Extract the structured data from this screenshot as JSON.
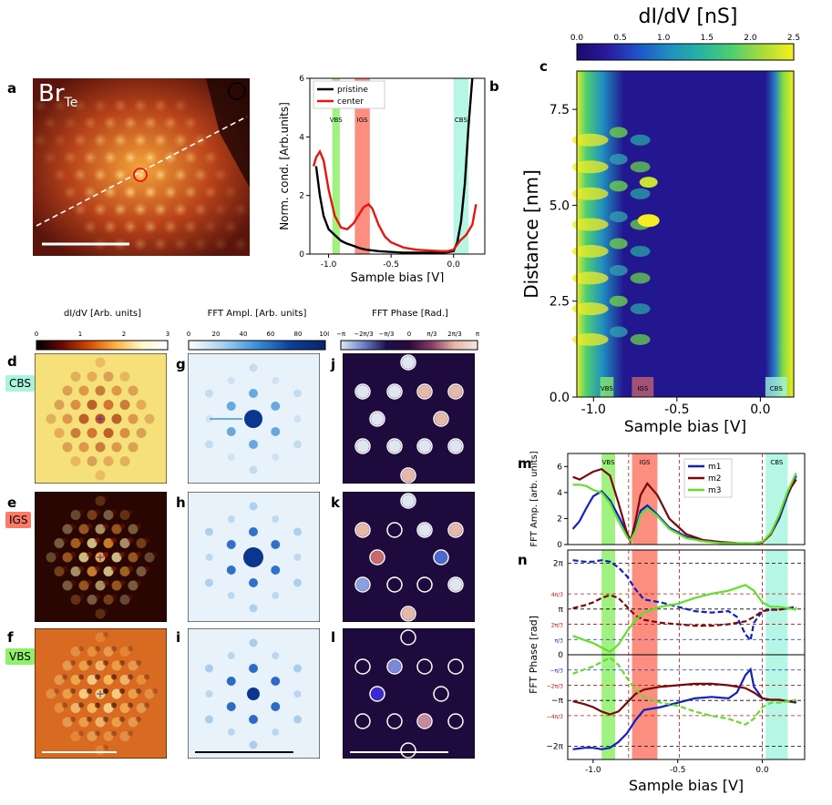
{
  "panel_letters": {
    "a": "a",
    "b": "b",
    "c": "c",
    "d": "d",
    "e": "e",
    "f": "f",
    "g": "g",
    "h": "h",
    "i": "i",
    "j": "j",
    "k": "k",
    "l": "l",
    "m": "m",
    "n": "n"
  },
  "panel_a": {
    "label_main": "Br",
    "label_sub": "Te"
  },
  "row_tags": {
    "cbs": "CBS",
    "igs": "IGS",
    "vbs": "VBS"
  },
  "colorbars": {
    "didv": {
      "title": "dI/dV [Arb. units]",
      "ticks": [
        "0",
        "1",
        "2",
        "3"
      ]
    },
    "fft_amp": {
      "title": "FFT Ampl. [Arb. units]",
      "ticks": [
        "0",
        "20",
        "40",
        "60",
        "80",
        "100"
      ]
    },
    "fft_phase": {
      "title": "FFT Phase [Rad.]",
      "ticks": [
        "−π",
        "−2π/3",
        "−π/3",
        "0",
        "π/3",
        "2π/3",
        "π"
      ]
    },
    "map_c": {
      "title": "dI/dV [nS]",
      "ticks": [
        "0.0",
        "0.5",
        "1.0",
        "1.5",
        "2.0",
        "2.5"
      ]
    }
  },
  "band_labels": {
    "vbs": "VBS",
    "igs": "IGS",
    "cbs": "CBS"
  },
  "chart_data": [
    {
      "id": "b",
      "type": "line",
      "xlabel": "Sample bias [V]",
      "ylabel": "Norm. cond. [Arb.units]",
      "xlim": [
        -1.15,
        0.25
      ],
      "ylim": [
        0,
        6
      ],
      "xticks": [
        "-1.0",
        "-0.5",
        "0.0"
      ],
      "yticks": [
        "0",
        "2",
        "4",
        "6"
      ],
      "legend": [
        "pristine",
        "center"
      ],
      "series": [
        {
          "name": "pristine",
          "color": "#000000",
          "x": [
            -1.1,
            -1.07,
            -1.04,
            -1.0,
            -0.95,
            -0.9,
            -0.85,
            -0.8,
            -0.75,
            -0.7,
            -0.6,
            -0.5,
            -0.4,
            -0.3,
            -0.2,
            -0.1,
            -0.05,
            0.0,
            0.03,
            0.06,
            0.09,
            0.12,
            0.15
          ],
          "y": [
            3.0,
            2.0,
            1.3,
            0.85,
            0.65,
            0.45,
            0.35,
            0.28,
            0.2,
            0.15,
            0.1,
            0.07,
            0.05,
            0.05,
            0.05,
            0.05,
            0.06,
            0.1,
            0.4,
            1.1,
            2.4,
            4.4,
            6.0
          ]
        },
        {
          "name": "center",
          "color": "#e8150e",
          "x": [
            -1.12,
            -1.1,
            -1.07,
            -1.04,
            -1.0,
            -0.95,
            -0.9,
            -0.85,
            -0.8,
            -0.75,
            -0.72,
            -0.68,
            -0.65,
            -0.6,
            -0.55,
            -0.5,
            -0.4,
            -0.3,
            -0.2,
            -0.1,
            -0.05,
            0.0,
            0.05,
            0.1,
            0.15,
            0.18
          ],
          "y": [
            3.0,
            3.3,
            3.5,
            3.2,
            2.2,
            1.3,
            0.9,
            0.85,
            1.05,
            1.4,
            1.6,
            1.7,
            1.55,
            1.0,
            0.6,
            0.4,
            0.22,
            0.15,
            0.12,
            0.1,
            0.1,
            0.15,
            0.45,
            0.65,
            1.0,
            1.7
          ]
        }
      ],
      "bands": [
        {
          "name": "VBS",
          "from": -0.97,
          "to": -0.91,
          "color": "#8ff06a"
        },
        {
          "name": "IGS",
          "from": -0.79,
          "to": -0.67,
          "color": "#fa7a67"
        },
        {
          "name": "CBS",
          "from": 0.0,
          "to": 0.12,
          "color": "#a8f5df"
        }
      ]
    },
    {
      "id": "c",
      "type": "heatmap",
      "xlabel": "Sample bias [V]",
      "ylabel": "Distance [nm]",
      "xlim": [
        -1.1,
        0.2
      ],
      "ylim": [
        0,
        8.5
      ],
      "xticks": [
        "-1.0",
        "-0.5",
        "0.0"
      ],
      "yticks": [
        "0.0",
        "2.5",
        "5.0",
        "7.5"
      ],
      "colorbar_range": [
        0,
        2.5
      ]
    },
    {
      "id": "m",
      "type": "line",
      "ylabel": "FFT Amp. [arb. units]",
      "xlim": [
        -1.15,
        0.25
      ],
      "ylim": [
        0,
        7
      ],
      "yticks": [
        "0",
        "2",
        "4",
        "6"
      ],
      "legend": [
        "m1",
        "m2",
        "m3"
      ],
      "series": [
        {
          "name": "m1",
          "color": "#1020c0",
          "x": [
            -1.12,
            -1.08,
            -1.04,
            -1.0,
            -0.95,
            -0.9,
            -0.85,
            -0.8,
            -0.78,
            -0.75,
            -0.72,
            -0.68,
            -0.62,
            -0.55,
            -0.45,
            -0.35,
            -0.25,
            -0.15,
            -0.05,
            0.0,
            0.05,
            0.1,
            0.15,
            0.2
          ],
          "y": [
            1.2,
            1.8,
            2.8,
            3.7,
            4.1,
            3.4,
            2.2,
            0.9,
            0.4,
            1.2,
            2.6,
            3.0,
            2.3,
            1.3,
            0.6,
            0.3,
            0.15,
            0.1,
            0.1,
            0.2,
            0.8,
            2.0,
            3.8,
            5.3
          ]
        },
        {
          "name": "m2",
          "color": "#7a0a0a",
          "x": [
            -1.12,
            -1.08,
            -1.04,
            -1.0,
            -0.95,
            -0.9,
            -0.85,
            -0.8,
            -0.78,
            -0.75,
            -0.72,
            -0.68,
            -0.62,
            -0.55,
            -0.45,
            -0.35,
            -0.25,
            -0.15,
            -0.05,
            0.0,
            0.05,
            0.1,
            0.15,
            0.2
          ],
          "y": [
            5.2,
            5.0,
            5.3,
            5.6,
            5.8,
            5.3,
            3.2,
            0.9,
            0.2,
            1.8,
            3.8,
            4.7,
            3.8,
            2.0,
            0.8,
            0.35,
            0.2,
            0.12,
            0.1,
            0.15,
            0.8,
            2.2,
            4.0,
            5.0
          ]
        },
        {
          "name": "m3",
          "color": "#5fe02a",
          "x": [
            -1.12,
            -1.08,
            -1.04,
            -1.0,
            -0.95,
            -0.9,
            -0.85,
            -0.8,
            -0.78,
            -0.75,
            -0.72,
            -0.68,
            -0.62,
            -0.55,
            -0.45,
            -0.35,
            -0.25,
            -0.15,
            -0.05,
            0.0,
            0.05,
            0.1,
            0.15,
            0.2
          ],
          "y": [
            4.6,
            4.6,
            4.5,
            4.2,
            4.0,
            3.2,
            1.8,
            0.6,
            0.3,
            1.0,
            2.3,
            2.8,
            2.2,
            1.2,
            0.5,
            0.25,
            0.12,
            0.1,
            0.1,
            0.2,
            0.9,
            2.3,
            4.1,
            5.5
          ]
        }
      ],
      "bands": [
        {
          "name": "VBS",
          "from": -0.95,
          "to": -0.87,
          "color": "#8ff06a"
        },
        {
          "name": "IGS",
          "from": -0.77,
          "to": -0.62,
          "color": "#fa7a67"
        },
        {
          "name": "CBS",
          "from": 0.02,
          "to": 0.15,
          "color": "#a8f5df"
        }
      ]
    },
    {
      "id": "n",
      "type": "line",
      "xlabel": "Sample bias [V]",
      "ylabel": "FFT Phase [rad]",
      "xlim": [
        -1.15,
        0.25
      ],
      "ylim": [
        -7.2,
        7.2
      ],
      "xticks": [
        "-1.0",
        "-0.5",
        "0.0"
      ],
      "yticks": [
        "2π",
        "π",
        "0",
        "−π",
        "−2π"
      ],
      "series": [
        {
          "name": "m1_upper",
          "color": "#1020c0",
          "dash": true,
          "x": [
            -1.12,
            -1.05,
            -1.0,
            -0.95,
            -0.9,
            -0.85,
            -0.8,
            -0.75,
            -0.7,
            -0.6,
            -0.5,
            -0.4,
            -0.3,
            -0.2,
            -0.15,
            -0.1,
            -0.07,
            -0.05,
            0.0,
            0.05,
            0.1,
            0.15,
            0.2
          ],
          "y": [
            6.5,
            6.4,
            6.4,
            6.5,
            6.4,
            6.0,
            5.4,
            4.5,
            3.8,
            3.6,
            3.3,
            3.0,
            2.9,
            3.0,
            2.6,
            1.4,
            1.0,
            2.2,
            3.0,
            3.1,
            3.1,
            3.2,
            3.3
          ]
        },
        {
          "name": "m1_lower",
          "color": "#1020c0",
          "dash": false,
          "x": [
            -1.12,
            -1.05,
            -1.0,
            -0.95,
            -0.9,
            -0.85,
            -0.8,
            -0.75,
            -0.7,
            -0.6,
            -0.5,
            -0.4,
            -0.3,
            -0.2,
            -0.15,
            -0.1,
            -0.07,
            -0.05,
            0.0,
            0.05,
            0.1,
            0.15,
            0.2
          ],
          "y": [
            -6.5,
            -6.4,
            -6.4,
            -6.5,
            -6.4,
            -6.0,
            -5.4,
            -4.5,
            -3.8,
            -3.6,
            -3.3,
            -3.0,
            -2.9,
            -3.0,
            -2.6,
            -1.4,
            -1.0,
            -2.2,
            -3.0,
            -3.1,
            -3.1,
            -3.2,
            -3.3
          ]
        },
        {
          "name": "m2_upper",
          "color": "#7a0a0a",
          "dash": true,
          "x": [
            -1.12,
            -1.05,
            -1.0,
            -0.95,
            -0.9,
            -0.85,
            -0.8,
            -0.75,
            -0.7,
            -0.6,
            -0.5,
            -0.4,
            -0.3,
            -0.2,
            -0.1,
            -0.05,
            0.0,
            0.05,
            0.1,
            0.15,
            0.2
          ],
          "y": [
            3.2,
            3.4,
            3.6,
            3.9,
            4.1,
            3.9,
            3.3,
            2.7,
            2.4,
            2.2,
            2.1,
            2.0,
            2.0,
            2.1,
            2.3,
            2.6,
            3.0,
            3.1,
            3.1,
            3.2,
            3.2
          ]
        },
        {
          "name": "m2_lower",
          "color": "#7a0a0a",
          "dash": false,
          "x": [
            -1.12,
            -1.05,
            -1.0,
            -0.95,
            -0.9,
            -0.85,
            -0.8,
            -0.75,
            -0.7,
            -0.6,
            -0.5,
            -0.4,
            -0.3,
            -0.2,
            -0.1,
            -0.05,
            0.0,
            0.05,
            0.1,
            0.15,
            0.2
          ],
          "y": [
            -3.2,
            -3.4,
            -3.6,
            -3.9,
            -4.1,
            -3.9,
            -3.3,
            -2.7,
            -2.4,
            -2.2,
            -2.1,
            -2.0,
            -2.0,
            -2.1,
            -2.3,
            -2.6,
            -3.0,
            -3.1,
            -3.1,
            -3.2,
            -3.2
          ]
        },
        {
          "name": "m3_upper",
          "color": "#5fe02a",
          "dash": false,
          "x": [
            -1.12,
            -1.05,
            -1.0,
            -0.95,
            -0.9,
            -0.85,
            -0.8,
            -0.75,
            -0.7,
            -0.6,
            -0.5,
            -0.4,
            -0.3,
            -0.2,
            -0.1,
            -0.05,
            0.0,
            0.05,
            0.1,
            0.15,
            0.2
          ],
          "y": [
            1.3,
            1.0,
            0.8,
            0.5,
            0.2,
            0.7,
            1.6,
            2.4,
            2.9,
            3.3,
            3.5,
            3.9,
            4.2,
            4.4,
            4.8,
            4.4,
            3.6,
            3.3,
            3.3,
            3.2,
            3.1
          ]
        },
        {
          "name": "m3_lower",
          "color": "#5fe02a",
          "dash": true,
          "x": [
            -1.12,
            -1.05,
            -1.0,
            -0.95,
            -0.9,
            -0.85,
            -0.8,
            -0.75,
            -0.7,
            -0.6,
            -0.5,
            -0.4,
            -0.3,
            -0.2,
            -0.1,
            -0.05,
            0.0,
            0.05,
            0.1,
            0.15,
            0.2
          ],
          "y": [
            -1.3,
            -1.0,
            -0.8,
            -0.5,
            -0.2,
            -0.7,
            -1.6,
            -2.4,
            -2.9,
            -3.3,
            -3.5,
            -3.9,
            -4.2,
            -4.4,
            -4.8,
            -4.4,
            -3.6,
            -3.3,
            -3.3,
            -3.2,
            -3.1
          ]
        }
      ],
      "hlines": [
        {
          "y": 6.283,
          "color": "#000000",
          "label": "2π"
        },
        {
          "y": 4.189,
          "color": "#c81010",
          "label": "4π/3"
        },
        {
          "y": 3.1416,
          "color": "#000000",
          "label": "π"
        },
        {
          "y": 2.094,
          "color": "#c81010",
          "label": "2π/3"
        },
        {
          "y": 1.047,
          "color": "#1030c0",
          "label": "π/3"
        },
        {
          "y": 0,
          "color": "#000000",
          "label": "0"
        },
        {
          "y": -1.047,
          "color": "#1030c0",
          "label": "−π/3"
        },
        {
          "y": -2.094,
          "color": "#c81010",
          "label": "−2π/3"
        },
        {
          "y": -3.1416,
          "color": "#000000",
          "label": "−π"
        },
        {
          "y": -4.189,
          "color": "#c81010",
          "label": "−4π/3"
        },
        {
          "y": -6.283,
          "color": "#000000",
          "label": "−2π"
        }
      ],
      "vlines": [
        -0.79,
        -0.49,
        0.0
      ],
      "bands": [
        {
          "name": "VBS",
          "from": -0.95,
          "to": -0.87,
          "color": "#8ff06a"
        },
        {
          "name": "IGS",
          "from": -0.77,
          "to": -0.62,
          "color": "#fa7a67"
        },
        {
          "name": "CBS",
          "from": 0.02,
          "to": 0.15,
          "color": "#a8f5df"
        }
      ]
    }
  ]
}
